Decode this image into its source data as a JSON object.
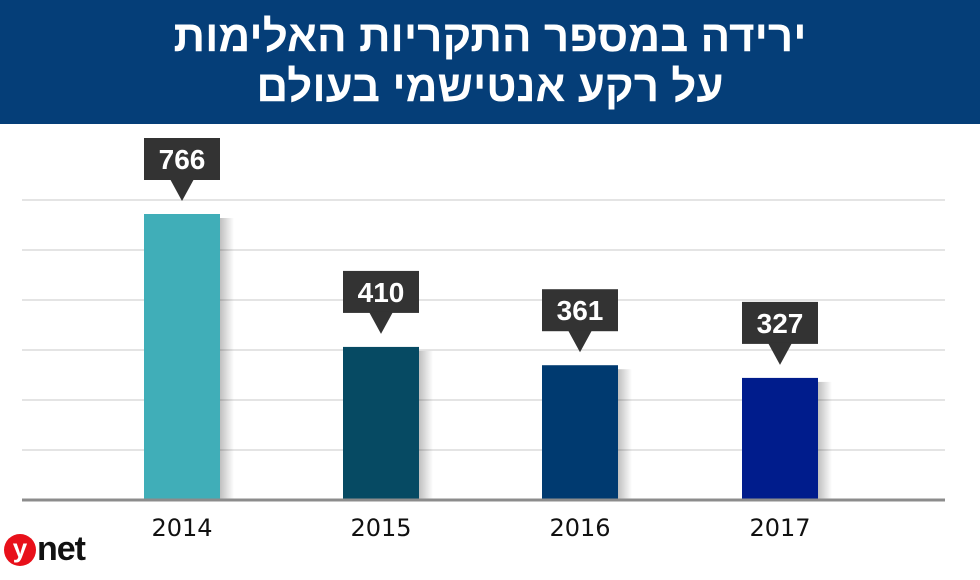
{
  "header": {
    "title_line1": "ירידה במספר התקריות האלימות",
    "title_line2": "על רקע אנטישמי בעולם"
  },
  "logo": {
    "text": "ynet",
    "brand_color": "#e8101a"
  },
  "chart_data": {
    "type": "bar",
    "title": "ירידה במספר התקריות האלימות על רקע אנטישמי בעולם",
    "categories": [
      "2014",
      "2015",
      "2016",
      "2017"
    ],
    "values": [
      766,
      410,
      361,
      327
    ],
    "data_labels": [
      "766",
      "410",
      "361",
      "327"
    ],
    "colors": [
      "#40aeb8",
      "#064a63",
      "#003a70",
      "#001c8c"
    ],
    "label_box_color": "#333333",
    "grid": true,
    "xlabel": "",
    "ylabel": "",
    "ylim": [
      0,
      800
    ]
  }
}
